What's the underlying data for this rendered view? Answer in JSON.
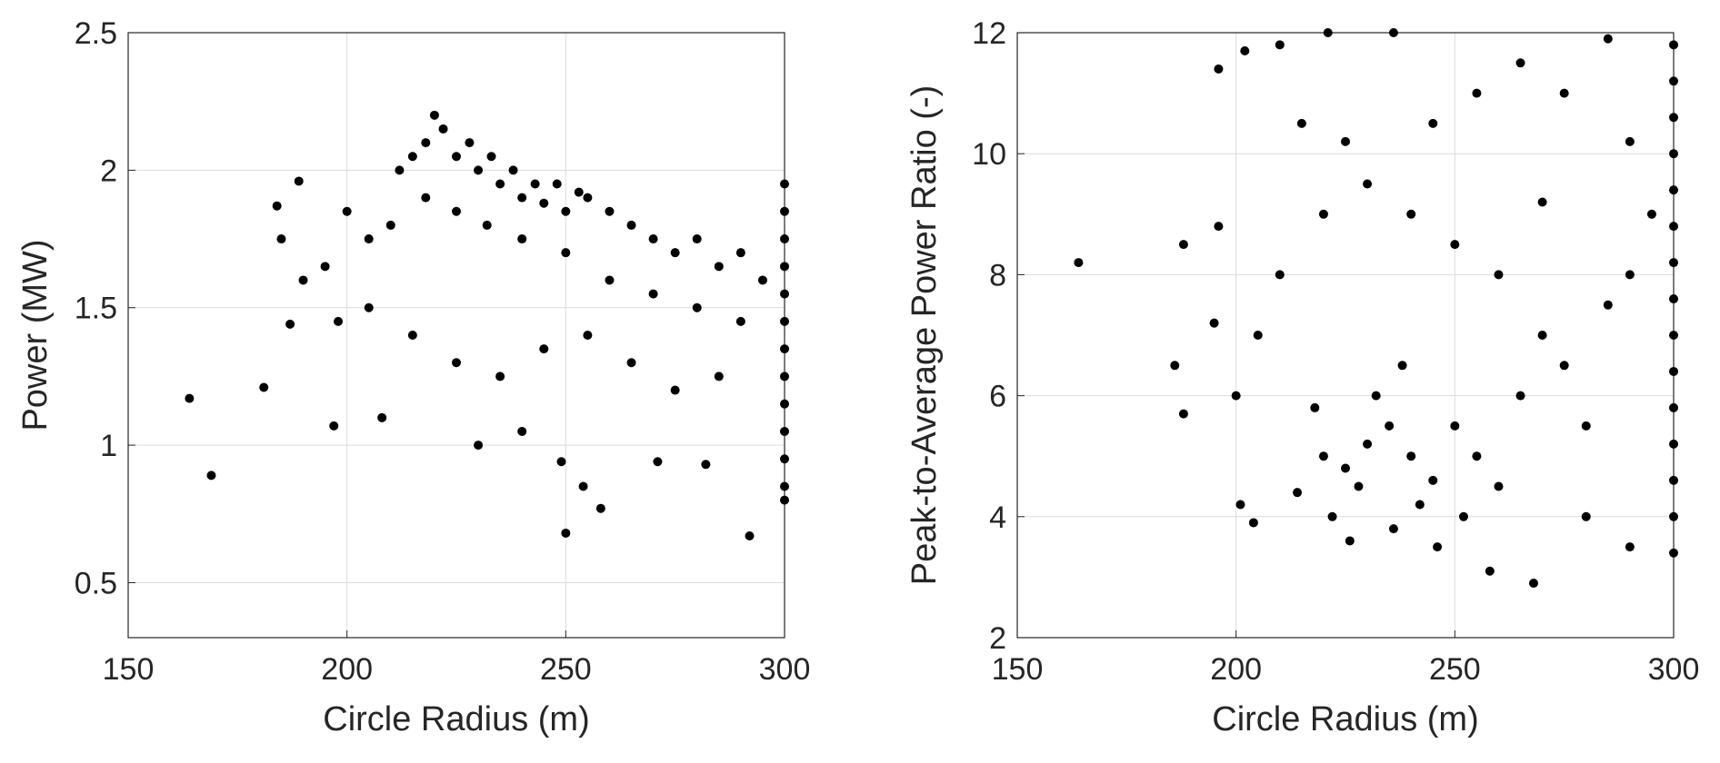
{
  "chart_data": [
    {
      "type": "scatter",
      "xlabel": "Circle Radius (m)",
      "ylabel": "Power (MW)",
      "color": "#000000",
      "grid": true,
      "xlim": [
        150,
        300
      ],
      "xticks": [
        150,
        200,
        250,
        300
      ],
      "ylim": [
        0.3,
        2.5
      ],
      "yticks": [
        0.5,
        1,
        1.5,
        2,
        2.5
      ],
      "x": [
        220,
        222,
        218,
        225,
        230,
        215,
        212,
        235,
        240,
        245,
        250,
        255,
        228,
        233,
        238,
        243,
        248,
        253,
        260,
        265,
        270,
        275,
        280,
        285,
        290,
        295,
        218,
        225,
        232,
        240,
        250,
        260,
        270,
        280,
        290,
        210,
        205,
        200,
        195,
        190,
        185,
        198,
        205,
        215,
        225,
        235,
        245,
        255,
        265,
        275,
        285,
        208,
        230,
        240,
        271,
        282,
        300,
        300,
        300,
        300,
        300,
        300,
        300,
        300,
        300,
        300,
        300,
        300,
        300,
        164,
        169,
        181,
        250,
        292,
        258,
        254,
        249,
        187,
        189,
        184,
        197
      ],
      "values": [
        2.2,
        2.15,
        2.1,
        2.05,
        2.0,
        2.05,
        2.0,
        1.95,
        1.9,
        1.88,
        1.85,
        1.9,
        2.1,
        2.05,
        2.0,
        1.95,
        1.95,
        1.92,
        1.85,
        1.8,
        1.75,
        1.7,
        1.75,
        1.65,
        1.7,
        1.6,
        1.9,
        1.85,
        1.8,
        1.75,
        1.7,
        1.6,
        1.55,
        1.5,
        1.45,
        1.8,
        1.75,
        1.85,
        1.65,
        1.6,
        1.75,
        1.45,
        1.5,
        1.4,
        1.3,
        1.25,
        1.35,
        1.4,
        1.3,
        1.2,
        1.25,
        1.1,
        1.0,
        1.05,
        0.94,
        0.93,
        1.95,
        1.85,
        1.75,
        1.65,
        1.55,
        1.45,
        1.35,
        1.25,
        1.15,
        1.05,
        0.95,
        0.85,
        0.8,
        1.17,
        0.89,
        1.21,
        0.68,
        0.67,
        0.77,
        0.85,
        0.94,
        1.44,
        1.96,
        1.87,
        1.07
      ]
    },
    {
      "type": "scatter",
      "xlabel": "Circle Radius (m)",
      "ylabel": "Peak-to-Average Power Ratio (-)",
      "color": "#000000",
      "grid": true,
      "xlim": [
        150,
        300
      ],
      "xticks": [
        150,
        200,
        250,
        300
      ],
      "ylim": [
        2,
        12
      ],
      "yticks": [
        2,
        4,
        6,
        8,
        10,
        12
      ],
      "x": [
        220,
        225,
        230,
        235,
        240,
        245,
        228,
        232,
        238,
        242,
        250,
        255,
        218,
        214,
        222,
        226,
        236,
        246,
        252,
        260,
        265,
        270,
        275,
        280,
        285,
        290,
        295,
        260,
        250,
        240,
        230,
        220,
        210,
        205,
        200,
        195,
        215,
        225,
        245,
        255,
        265,
        275,
        285,
        290,
        270,
        280,
        290,
        268,
        258,
        164,
        196,
        202,
        210,
        221,
        236,
        186,
        188,
        201,
        204,
        188,
        196,
        300,
        300,
        300,
        300,
        300,
        300,
        300,
        300,
        300,
        300,
        300,
        300,
        300,
        300,
        300
      ],
      "values": [
        5,
        4.8,
        5.2,
        5.5,
        5,
        4.6,
        4.5,
        6,
        6.5,
        4.2,
        5.5,
        5,
        5.8,
        4.4,
        4,
        3.6,
        3.8,
        3.5,
        4,
        4.5,
        6,
        7,
        6.5,
        5.5,
        7.5,
        8,
        9,
        8,
        8.5,
        9,
        9.5,
        9,
        8,
        7,
        6,
        7.2,
        10.5,
        10.2,
        10.5,
        11,
        11.5,
        11,
        11.9,
        10.2,
        9.2,
        4,
        3.5,
        2.9,
        3.1,
        8.2,
        11.4,
        11.7,
        11.8,
        12,
        12,
        6.5,
        5.7,
        4.2,
        3.9,
        8.5,
        8.8,
        3.4,
        4,
        4.6,
        5.2,
        5.8,
        6.4,
        7,
        7.6,
        8.2,
        8.8,
        9.4,
        10,
        10.6,
        11.2,
        11.8
      ]
    }
  ]
}
